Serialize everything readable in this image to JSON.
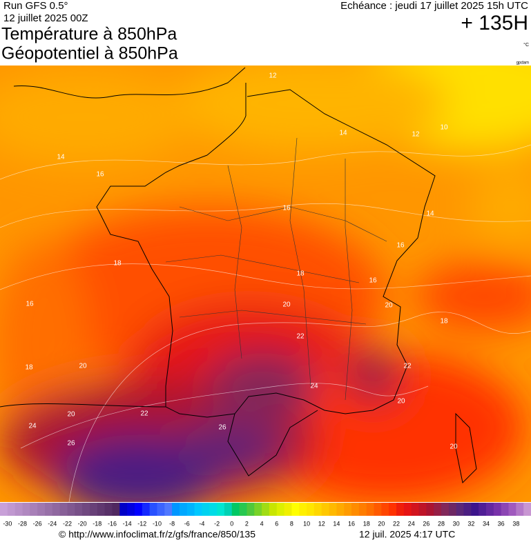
{
  "header": {
    "run": "Run GFS 0.5°",
    "run_date": "12 juillet 2025 00Z",
    "title1": "Température à 850hPa",
    "title2": "Géopotentiel à 850hPa",
    "forecast": "Echéance : jeudi 17 juillet 2025 15h UTC",
    "lead": "+ 135H",
    "unit": "°C",
    "unit2": "gpdam"
  },
  "contour_labels": [
    12,
    14,
    12,
    10,
    14,
    16,
    16,
    14,
    16,
    18,
    18,
    16,
    16,
    20,
    20,
    18,
    22,
    20,
    18,
    22,
    24,
    20,
    22,
    20,
    24,
    26,
    26,
    20
  ],
  "scale": {
    "labels": [
      -30,
      -28,
      -26,
      -24,
      -22,
      -20,
      -18,
      -16,
      -14,
      -12,
      -10,
      -8,
      -6,
      -4,
      -2,
      0,
      2,
      4,
      6,
      8,
      10,
      12,
      14,
      16,
      18,
      20,
      22,
      24,
      26,
      28,
      30,
      32,
      34,
      36,
      38
    ],
    "colors": [
      "#c8a0d8",
      "#c098d0",
      "#b890c8",
      "#b088c0",
      "#a880b8",
      "#a078b0",
      "#9870a8",
      "#9068a0",
      "#886098",
      "#805890",
      "#785088",
      "#704880",
      "#684078",
      "#603870",
      "#583068",
      "#502860",
      "#0000c8",
      "#0000e0",
      "#0000ff",
      "#1428ff",
      "#2850ff",
      "#3c64ff",
      "#5078ff",
      "#0096ff",
      "#00a8ff",
      "#00b4ff",
      "#00c8ff",
      "#00d2f0",
      "#00dce6",
      "#00e6d2",
      "#00d2b4",
      "#00c864",
      "#28c850",
      "#50c83c",
      "#78d228",
      "#a0dc14",
      "#c8e600",
      "#dcf000",
      "#f0f000",
      "#ffff00",
      "#fff000",
      "#ffe600",
      "#ffd700",
      "#ffc800",
      "#ffb900",
      "#ffaa00",
      "#ff9b00",
      "#ff8c00",
      "#ff7d00",
      "#ff6e00",
      "#ff5a00",
      "#ff4600",
      "#ff3200",
      "#f01e0a",
      "#e61414",
      "#d2141e",
      "#be1428",
      "#aa1432",
      "#961e46",
      "#82285a",
      "#6e2864",
      "#5a2878",
      "#4b1e82",
      "#3c148c",
      "#501e96",
      "#6428a0",
      "#7832aa",
      "#8c46b4",
      "#a05abe",
      "#b478c8",
      "#c896d2"
    ]
  },
  "footer": {
    "url": "© http://www.infoclimat.fr/z/gfs/france/850/135",
    "timestamp": "12 juil. 2025  4:17 UTC"
  }
}
